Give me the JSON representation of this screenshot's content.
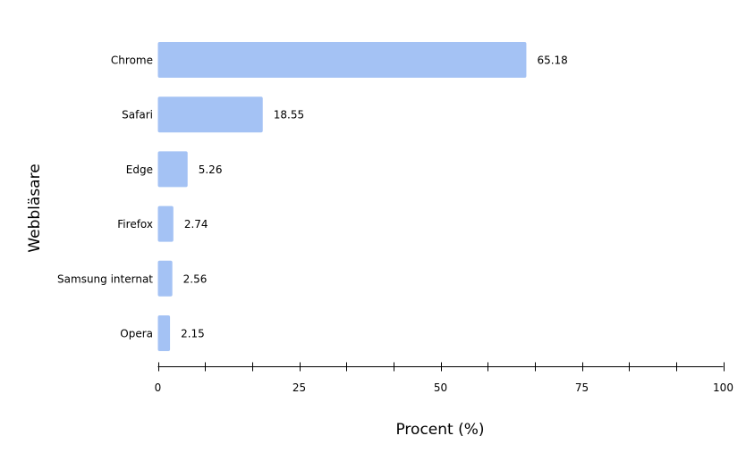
{
  "chart_data": {
    "type": "bar",
    "orientation": "horizontal",
    "categories": [
      "Chrome",
      "Safari",
      "Edge",
      "Firefox",
      "Samsung internat",
      "Opera"
    ],
    "values": [
      65.18,
      18.55,
      5.26,
      2.74,
      2.56,
      2.15
    ],
    "value_labels": [
      "65.18",
      "18.55",
      "5.26",
      "2.74",
      "2.56",
      "2.15"
    ],
    "xlabel": "Procent (%)",
    "ylabel": "Webbläsare",
    "xlim": [
      0,
      100
    ],
    "xticks": [
      0,
      25,
      50,
      75,
      100
    ],
    "bar_color": "#a4c2f4",
    "grid": false,
    "legend": "none"
  }
}
